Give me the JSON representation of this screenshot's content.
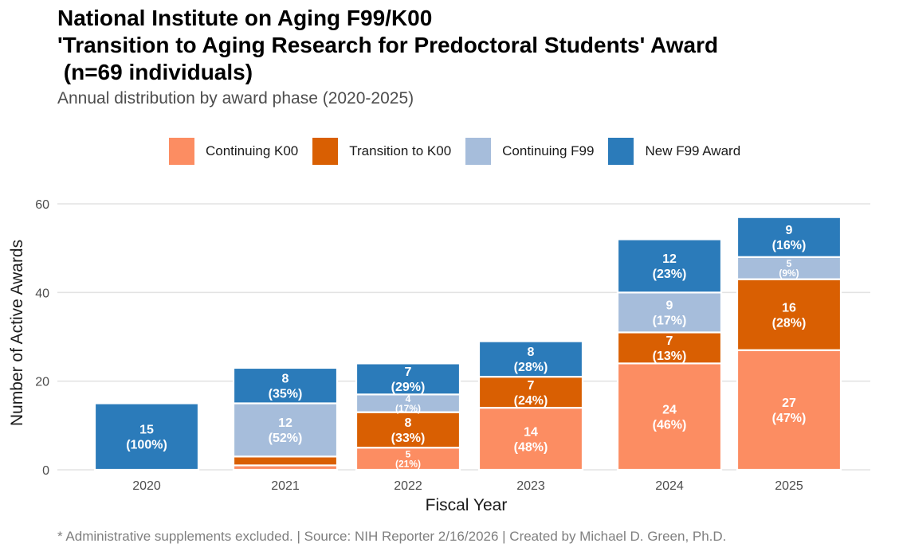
{
  "chart_data": {
    "type": "bar",
    "stacked": true,
    "title": "National Institute on Aging F99/K00\n'Transition to Aging Research for Predoctoral Students' Award\n (n=69 individuals)",
    "subtitle": "Annual distribution by award phase (2020-2025)",
    "xlabel": "Fiscal Year",
    "ylabel": "Number of Active Awards",
    "ylim": [
      0,
      62
    ],
    "yticks": [
      0,
      20,
      40,
      60
    ],
    "grid": true,
    "legend_position": "top",
    "categories": [
      "2020",
      "2021",
      "2022",
      "2023",
      "2024",
      "2025"
    ],
    "series": [
      {
        "name": "Continuing K00",
        "color": "#FC8D62",
        "values": [
          0,
          1,
          5,
          14,
          24,
          27
        ],
        "labels": [
          "",
          "",
          "5\n(21%)",
          "14\n(48%)",
          "24\n(46%)",
          "27\n(47%)"
        ]
      },
      {
        "name": "Transition to K00",
        "color": "#D95F02",
        "values": [
          0,
          2,
          8,
          7,
          7,
          16
        ],
        "labels": [
          "",
          "",
          "8\n(33%)",
          "7\n(24%)",
          "7\n(13%)",
          "16\n(28%)"
        ]
      },
      {
        "name": "Continuing F99",
        "color": "#A6BDDB",
        "values": [
          0,
          12,
          4,
          0,
          9,
          5
        ],
        "labels": [
          "",
          "12\n(52%)",
          "4\n(17%)",
          "",
          "9\n(17%)",
          "5\n(9%)"
        ]
      },
      {
        "name": "New F99 Award",
        "color": "#2B7BBA",
        "values": [
          15,
          8,
          7,
          8,
          12,
          9
        ],
        "labels": [
          "15\n(100%)",
          "8\n(35%)",
          "7\n(29%)",
          "8\n(28%)",
          "12\n(23%)",
          "9\n(16%)"
        ]
      }
    ],
    "legend_order": [
      "Continuing K00",
      "Transition to K00",
      "Continuing F99",
      "New F99 Award"
    ],
    "caption": "* Administrative supplements excluded. | Source: NIH Reporter 2/16/2026 | Created by Michael D. Green, Ph.D."
  }
}
